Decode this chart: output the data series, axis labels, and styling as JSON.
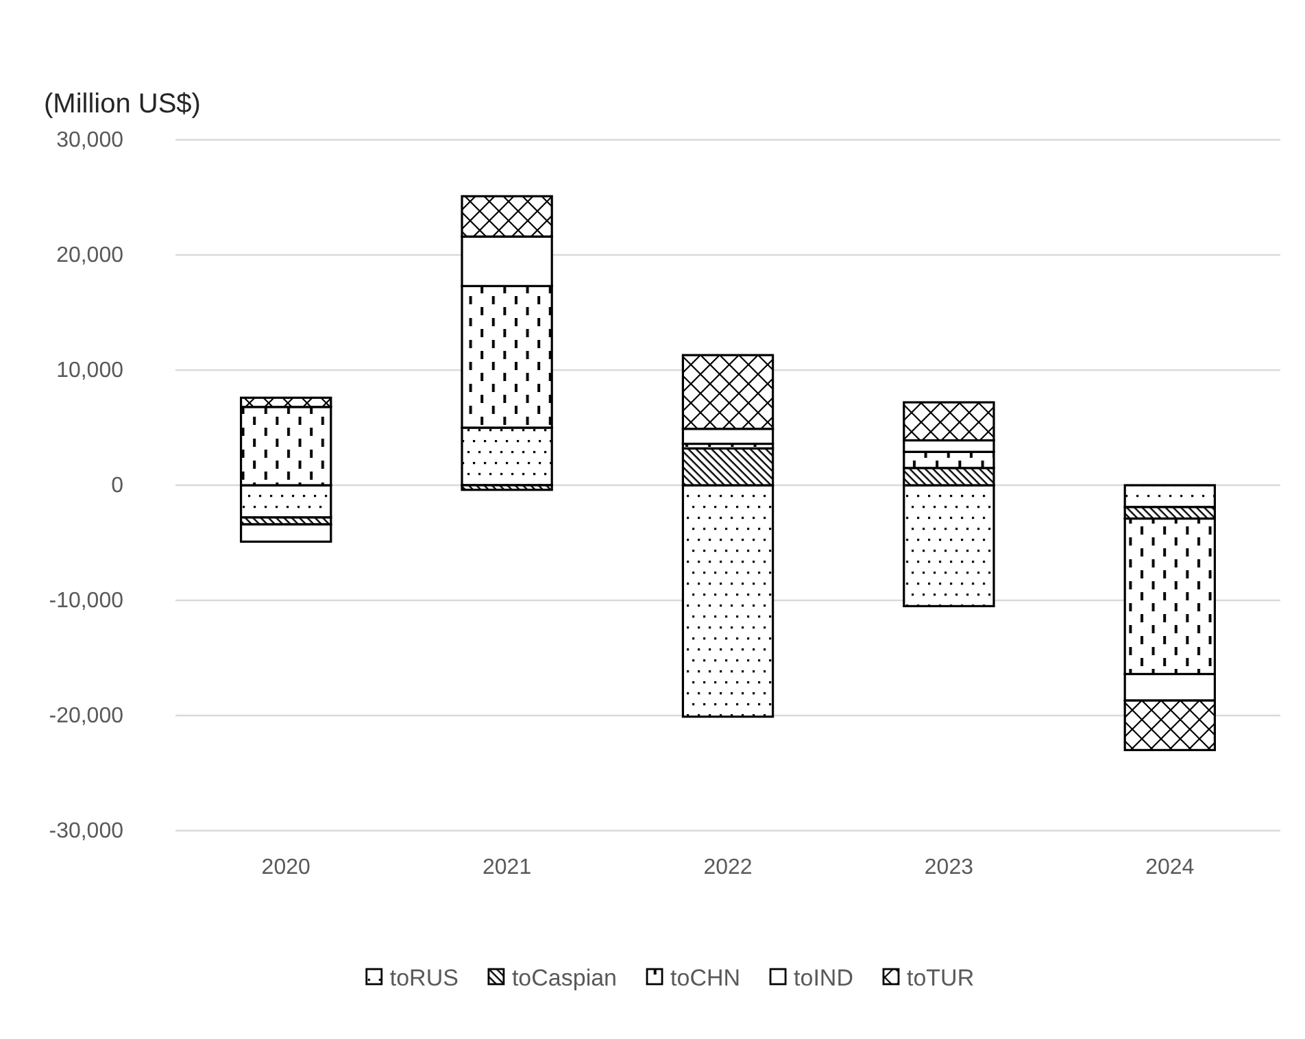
{
  "chart_data": {
    "type": "bar",
    "ylabel": "(Million US$)",
    "categories": [
      "2020",
      "2021",
      "2022",
      "2023",
      "2024"
    ],
    "series": [
      {
        "name": "toRUS",
        "color": "#000000",
        "values": [
          -2800,
          5000,
          -20100,
          -10500,
          -1900
        ]
      },
      {
        "name": "toCaspian",
        "color": "#000000",
        "values": [
          -600,
          -400,
          3200,
          1500,
          -1000
        ]
      },
      {
        "name": "toCHN",
        "color": "#000000",
        "values": [
          6800,
          12300,
          400,
          1400,
          -13500
        ]
      },
      {
        "name": "toIND",
        "color": "#000000",
        "values": [
          -1500,
          4300,
          1300,
          1000,
          -2300
        ]
      },
      {
        "name": "toTUR",
        "color": "#000000",
        "values": [
          800,
          3500,
          6400,
          3300,
          -4300
        ]
      }
    ],
    "stacked": true,
    "ylim": [
      -30000,
      30000
    ],
    "yticks": [
      {
        "value": -30000,
        "label": "-30,000"
      },
      {
        "value": -20000,
        "label": "-20,000"
      },
      {
        "value": -10000,
        "label": "-10,000"
      },
      0,
      {
        "value": 10000,
        "label": "10,000"
      },
      {
        "value": 20000,
        "label": "20,000"
      },
      {
        "value": 30000,
        "label": "30,000"
      }
    ],
    "grid": "y",
    "legend": "bottom"
  }
}
